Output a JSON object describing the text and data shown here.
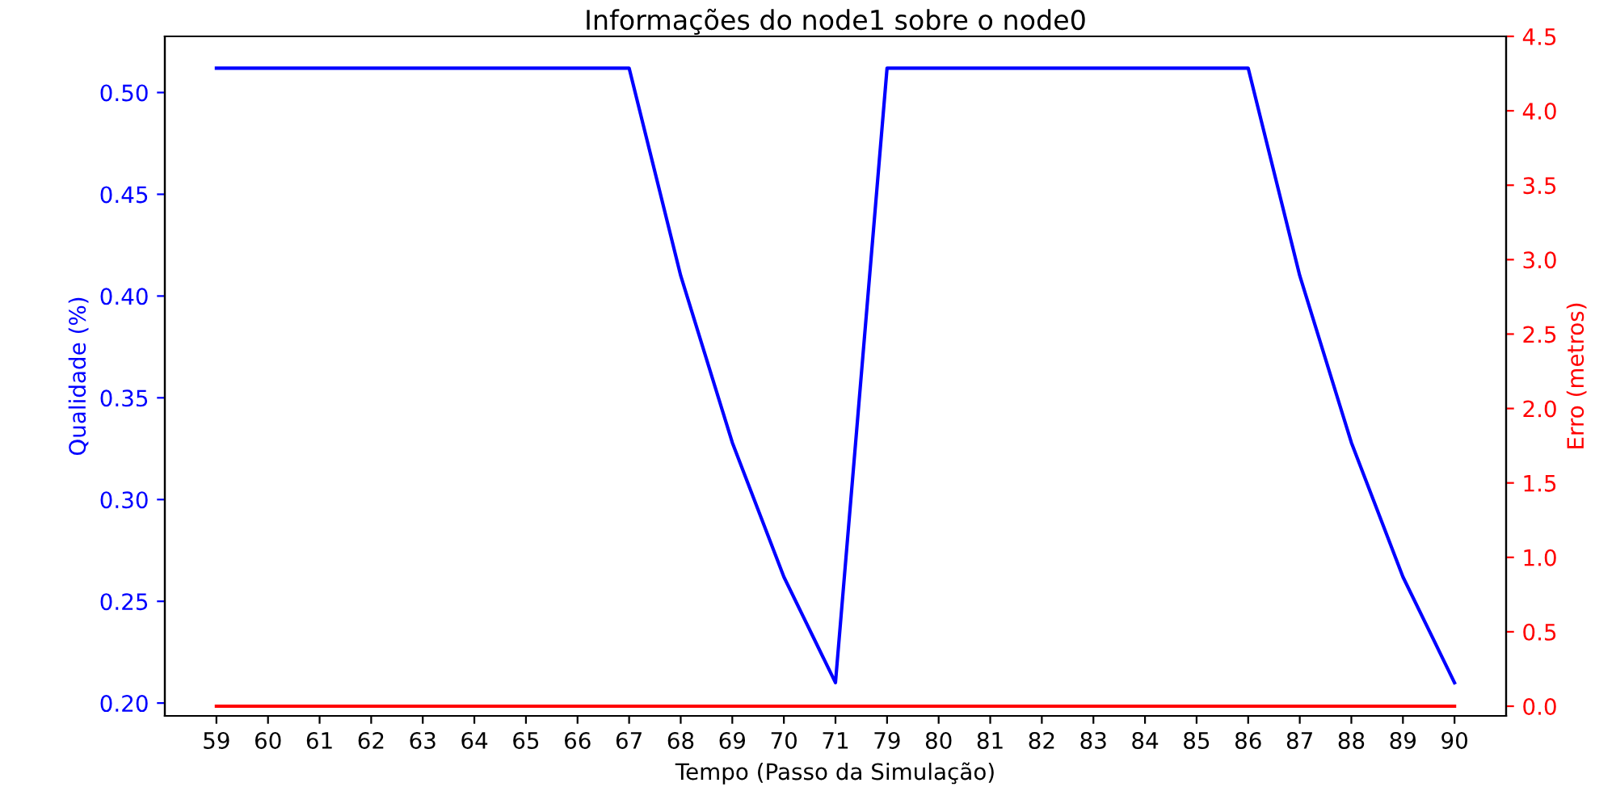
{
  "chart_data": {
    "type": "line",
    "title": "Informações do node1 sobre o node0",
    "xlabel": "Tempo (Passo da Simulação)",
    "ylabel": "Qualidade (%)",
    "y2label": "Erro (metros)",
    "categories": [
      "59",
      "60",
      "61",
      "62",
      "63",
      "64",
      "65",
      "66",
      "67",
      "68",
      "69",
      "70",
      "71",
      "79",
      "80",
      "81",
      "82",
      "83",
      "84",
      "85",
      "86",
      "87",
      "88",
      "89",
      "90"
    ],
    "series": [
      {
        "color": "#0000ff",
        "values": [
          0.512,
          0.512,
          0.512,
          0.512,
          0.512,
          0.512,
          0.512,
          0.512,
          0.512,
          0.41,
          0.328,
          0.262,
          0.21,
          0.512,
          0.512,
          0.512,
          0.512,
          0.512,
          0.512,
          0.512,
          0.512,
          0.41,
          0.328,
          0.262,
          0.21
        ]
      },
      {
        "color": "#ff0000",
        "axis": "y2",
        "values": [
          0,
          0,
          0,
          0,
          0,
          0,
          0,
          0,
          0,
          0,
          0,
          0,
          0,
          0,
          0,
          0,
          0,
          0,
          0,
          0,
          0,
          0,
          0,
          0,
          0
        ]
      }
    ],
    "ylim": [
      0.1937,
      0.5276
    ],
    "yticks": [
      {
        "value": 0.2,
        "label": "0.20"
      },
      {
        "value": 0.25,
        "label": "0.25"
      },
      {
        "value": 0.3,
        "label": "0.30"
      },
      {
        "value": 0.35,
        "label": "0.35"
      },
      {
        "value": 0.4,
        "label": "0.40"
      },
      {
        "value": 0.45,
        "label": "0.45"
      },
      {
        "value": 0.5,
        "label": "0.50"
      }
    ],
    "y2lim": [
      -0.065,
      4.5
    ],
    "y2ticks": [
      {
        "value": 0,
        "label": "0.0"
      },
      {
        "value": 0.5,
        "label": "0.5"
      },
      {
        "value": 1,
        "label": "1.0"
      },
      {
        "value": 1.5,
        "label": "1.5"
      },
      {
        "value": 2,
        "label": "2.0"
      },
      {
        "value": 2.5,
        "label": "2.5"
      },
      {
        "value": 3,
        "label": "3.0"
      },
      {
        "value": 3.5,
        "label": "3.5"
      },
      {
        "value": 4,
        "label": "4.0"
      },
      {
        "value": 4.5,
        "label": "4.5"
      }
    ],
    "grid": false,
    "legend": false,
    "marker": "none",
    "line_style": "solid"
  }
}
